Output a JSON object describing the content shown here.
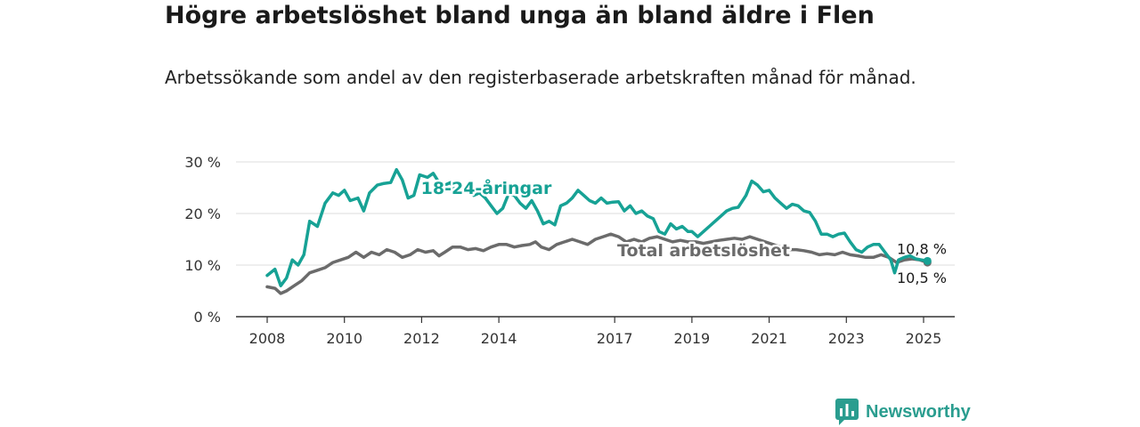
{
  "title": "Högre arbetslöshet bland unga än bland äldre i Flen",
  "subtitle": "Arbetssökande som andel av den registerbaserade arbetskraften månad för månad.",
  "brand": "Newsworthy",
  "colors": {
    "youth": "#17a295",
    "total": "#6b6b6b",
    "grid": "#dddddd",
    "axis": "#333333"
  },
  "chart_data": {
    "type": "line",
    "title": "Högre arbetslöshet bland unga än bland äldre i Flen",
    "subtitle": "Arbetssökande som andel av den registerbaserade arbetskraften månad för månad.",
    "ylim": [
      0,
      30
    ],
    "yticks": [
      0,
      10,
      20,
      30
    ],
    "ytick_labels": [
      "0 %",
      "10 %",
      "20 %",
      "30 %"
    ],
    "xlim": [
      2008.0,
      2025.7
    ],
    "xticks": [
      2008,
      2010,
      2012,
      2014,
      2017,
      2019,
      2021,
      2023,
      2025
    ],
    "xtick_labels": [
      "2008",
      "2010",
      "2012",
      "2014",
      "2017",
      "2019",
      "2021",
      "2023",
      "2025"
    ],
    "grid": true,
    "series": [
      {
        "name": "18-24-åringar",
        "color_key": "youth",
        "end_label": "10,8 %",
        "points": [
          [
            2008.0,
            8
          ],
          [
            2008.2,
            9.2
          ],
          [
            2008.35,
            6
          ],
          [
            2008.5,
            7.5
          ],
          [
            2008.65,
            11
          ],
          [
            2008.8,
            10
          ],
          [
            2008.95,
            12
          ],
          [
            2009.1,
            18.5
          ],
          [
            2009.3,
            17.5
          ],
          [
            2009.5,
            22
          ],
          [
            2009.7,
            24
          ],
          [
            2009.85,
            23.5
          ],
          [
            2010.0,
            24.5
          ],
          [
            2010.15,
            22.5
          ],
          [
            2010.35,
            23
          ],
          [
            2010.5,
            20.5
          ],
          [
            2010.65,
            24
          ],
          [
            2010.85,
            25.5
          ],
          [
            2011.0,
            25.8
          ],
          [
            2011.2,
            26
          ],
          [
            2011.35,
            28.5
          ],
          [
            2011.5,
            26.5
          ],
          [
            2011.65,
            23
          ],
          [
            2011.8,
            23.5
          ],
          [
            2011.95,
            27.5
          ],
          [
            2012.15,
            27
          ],
          [
            2012.3,
            27.8
          ],
          [
            2012.45,
            26
          ],
          [
            2012.6,
            25.5
          ],
          [
            2012.75,
            26
          ],
          [
            2012.9,
            24
          ],
          [
            2013.05,
            25
          ],
          [
            2013.2,
            24.5
          ],
          [
            2013.35,
            23.5
          ],
          [
            2013.5,
            24
          ],
          [
            2013.65,
            23
          ],
          [
            2013.8,
            21.5
          ],
          [
            2013.95,
            20
          ],
          [
            2014.1,
            21
          ],
          [
            2014.25,
            23.8
          ],
          [
            2014.4,
            23.5
          ],
          [
            2014.55,
            22
          ],
          [
            2014.7,
            21
          ],
          [
            2014.85,
            22.5
          ],
          [
            2015.0,
            20.5
          ],
          [
            2015.15,
            18
          ],
          [
            2015.3,
            18.5
          ],
          [
            2015.45,
            17.8
          ],
          [
            2015.6,
            21.5
          ],
          [
            2015.75,
            22
          ],
          [
            2015.9,
            23
          ],
          [
            2016.05,
            24.5
          ],
          [
            2016.2,
            23.5
          ],
          [
            2016.35,
            22.5
          ],
          [
            2016.5,
            22
          ],
          [
            2016.65,
            23
          ],
          [
            2016.8,
            22
          ],
          [
            2016.95,
            22.2
          ],
          [
            2017.1,
            22.3
          ],
          [
            2017.25,
            20.5
          ],
          [
            2017.4,
            21.5
          ],
          [
            2017.55,
            20
          ],
          [
            2017.7,
            20.5
          ],
          [
            2017.85,
            19.5
          ],
          [
            2018.0,
            19
          ],
          [
            2018.15,
            16.5
          ],
          [
            2018.3,
            16
          ],
          [
            2018.45,
            18
          ],
          [
            2018.6,
            17
          ],
          [
            2018.75,
            17.5
          ],
          [
            2018.9,
            16.5
          ],
          [
            2019.0,
            16.5
          ],
          [
            2019.15,
            15.5
          ],
          [
            2019.3,
            16.5
          ],
          [
            2019.45,
            17.5
          ],
          [
            2019.6,
            18.5
          ],
          [
            2019.75,
            19.5
          ],
          [
            2019.9,
            20.5
          ],
          [
            2020.05,
            21
          ],
          [
            2020.2,
            21.2
          ],
          [
            2020.4,
            23.5
          ],
          [
            2020.55,
            26.3
          ],
          [
            2020.7,
            25.5
          ],
          [
            2020.85,
            24.2
          ],
          [
            2021.0,
            24.5
          ],
          [
            2021.15,
            23
          ],
          [
            2021.3,
            22
          ],
          [
            2021.45,
            21
          ],
          [
            2021.6,
            21.8
          ],
          [
            2021.75,
            21.5
          ],
          [
            2021.9,
            20.5
          ],
          [
            2022.05,
            20.2
          ],
          [
            2022.2,
            18.5
          ],
          [
            2022.35,
            16
          ],
          [
            2022.5,
            16
          ],
          [
            2022.65,
            15.5
          ],
          [
            2022.8,
            16
          ],
          [
            2022.95,
            16.2
          ],
          [
            2023.1,
            14.5
          ],
          [
            2023.25,
            13
          ],
          [
            2023.4,
            12.5
          ],
          [
            2023.55,
            13.5
          ],
          [
            2023.7,
            14
          ],
          [
            2023.85,
            14
          ],
          [
            2024.0,
            12.5
          ],
          [
            2024.15,
            11
          ],
          [
            2024.25,
            8.5
          ],
          [
            2024.35,
            11
          ],
          [
            2024.5,
            11.5
          ],
          [
            2024.65,
            11.8
          ],
          [
            2024.8,
            11.2
          ],
          [
            2024.95,
            11
          ],
          [
            2025.1,
            10.8
          ]
        ]
      },
      {
        "name": "Total arbetslöshet",
        "color_key": "total",
        "end_label": "10,5 %",
        "points": [
          [
            2008.0,
            5.8
          ],
          [
            2008.2,
            5.5
          ],
          [
            2008.35,
            4.5
          ],
          [
            2008.5,
            5
          ],
          [
            2008.7,
            6
          ],
          [
            2008.9,
            7
          ],
          [
            2009.1,
            8.5
          ],
          [
            2009.3,
            9
          ],
          [
            2009.5,
            9.5
          ],
          [
            2009.7,
            10.5
          ],
          [
            2009.9,
            11
          ],
          [
            2010.1,
            11.5
          ],
          [
            2010.3,
            12.5
          ],
          [
            2010.5,
            11.5
          ],
          [
            2010.7,
            12.5
          ],
          [
            2010.9,
            12
          ],
          [
            2011.1,
            13
          ],
          [
            2011.3,
            12.5
          ],
          [
            2011.5,
            11.5
          ],
          [
            2011.7,
            12
          ],
          [
            2011.9,
            13
          ],
          [
            2012.1,
            12.5
          ],
          [
            2012.3,
            12.8
          ],
          [
            2012.45,
            11.8
          ],
          [
            2012.6,
            12.5
          ],
          [
            2012.8,
            13.5
          ],
          [
            2013.0,
            13.5
          ],
          [
            2013.2,
            13
          ],
          [
            2013.4,
            13.2
          ],
          [
            2013.6,
            12.8
          ],
          [
            2013.8,
            13.5
          ],
          [
            2014.0,
            14
          ],
          [
            2014.2,
            14
          ],
          [
            2014.4,
            13.5
          ],
          [
            2014.6,
            13.8
          ],
          [
            2014.8,
            14
          ],
          [
            2014.95,
            14.5
          ],
          [
            2015.1,
            13.5
          ],
          [
            2015.3,
            13
          ],
          [
            2015.5,
            14
          ],
          [
            2015.7,
            14.5
          ],
          [
            2015.9,
            15
          ],
          [
            2016.1,
            14.5
          ],
          [
            2016.3,
            14
          ],
          [
            2016.5,
            15
          ],
          [
            2016.7,
            15.5
          ],
          [
            2016.9,
            16
          ],
          [
            2017.1,
            15.5
          ],
          [
            2017.3,
            14.5
          ],
          [
            2017.5,
            15
          ],
          [
            2017.7,
            14.5
          ],
          [
            2017.9,
            15.2
          ],
          [
            2018.1,
            15.5
          ],
          [
            2018.3,
            15
          ],
          [
            2018.5,
            14.5
          ],
          [
            2018.7,
            14.8
          ],
          [
            2018.9,
            14.5
          ],
          [
            2019.1,
            14.5
          ],
          [
            2019.3,
            14.2
          ],
          [
            2019.5,
            14.5
          ],
          [
            2019.7,
            14.8
          ],
          [
            2019.9,
            15
          ],
          [
            2020.1,
            15.2
          ],
          [
            2020.3,
            15
          ],
          [
            2020.5,
            15.5
          ],
          [
            2020.7,
            15
          ],
          [
            2020.9,
            14.5
          ],
          [
            2021.1,
            14
          ],
          [
            2021.3,
            13.5
          ],
          [
            2021.5,
            13
          ],
          [
            2021.7,
            13
          ],
          [
            2021.9,
            12.8
          ],
          [
            2022.1,
            12.5
          ],
          [
            2022.3,
            12
          ],
          [
            2022.5,
            12.2
          ],
          [
            2022.7,
            12
          ],
          [
            2022.9,
            12.5
          ],
          [
            2023.1,
            12
          ],
          [
            2023.3,
            11.8
          ],
          [
            2023.5,
            11.5
          ],
          [
            2023.7,
            11.5
          ],
          [
            2023.9,
            12
          ],
          [
            2024.1,
            11.5
          ],
          [
            2024.3,
            10.5
          ],
          [
            2024.5,
            11
          ],
          [
            2024.7,
            11.2
          ],
          [
            2024.9,
            11
          ],
          [
            2025.1,
            10.5
          ]
        ]
      }
    ],
    "annotations": [
      {
        "text": "18-24-åringar",
        "series": "18-24-åringar",
        "x": 2013.5,
        "y": 25
      },
      {
        "text": "Total arbetslöshet",
        "series": "Total arbetslöshet",
        "x": 2018.3,
        "y": 12.3
      }
    ]
  }
}
